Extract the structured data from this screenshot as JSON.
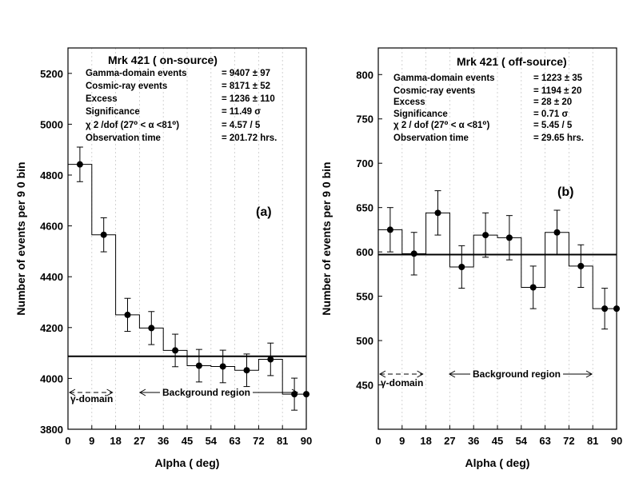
{
  "colors": {
    "ink": "#000000",
    "background": "#ffffff",
    "grid": "#c8c8c8"
  },
  "shared_x_label": "Alpha ( deg)",
  "x_ticks": [
    "0",
    "9",
    "18",
    "27",
    "36",
    "45",
    "54",
    "63",
    "72",
    "81",
    "90"
  ],
  "chart_data": [
    {
      "panel_label": "(a)",
      "type": "line",
      "title": "Mrk  421 ( on-source)",
      "xlabel": "Alpha ( deg)",
      "ylabel": "Number of events per  9 0  bin",
      "ylim": [
        3800,
        5300
      ],
      "y_ticks": [
        "3800",
        "4000",
        "4200",
        "4400",
        "4600",
        "4800",
        "5000",
        "5200"
      ],
      "xlim": [
        0,
        90
      ],
      "grid": true,
      "series": [
        {
          "name": "events per bin",
          "x": [
            4.5,
            13.5,
            22.5,
            31.5,
            40.5,
            49.5,
            58.5,
            67.5,
            76.5,
            85.5,
            90
          ],
          "values": [
            4842,
            4565,
            4250,
            4198,
            4110,
            4050,
            4047,
            4032,
            4075,
            3938,
            3938
          ],
          "errors": [
            68,
            67,
            65,
            65,
            64,
            64,
            64,
            64,
            64,
            63,
            0
          ]
        }
      ],
      "background_level": 4087,
      "annotations": {
        "arrow_left": "γ-domain",
        "arrow_right": "Background   region"
      },
      "stats": [
        {
          "label": "Gamma-domain events",
          "value": "=   9407  ±   97"
        },
        {
          "label": "Cosmic-ray         events",
          "value": "=   8171  ±   52"
        },
        {
          "label": "Excess",
          "value": "=   1236  ±  110"
        },
        {
          "label": "Significance",
          "value": "=         11.49 σ"
        },
        {
          "label": "χ 2 /dof  (27⁰ < α <81⁰)",
          "value": "=     4.57  / 5"
        },
        {
          "label": "Observation time",
          "value": "=     201.72  hrs."
        }
      ]
    },
    {
      "panel_label": "(b)",
      "type": "line",
      "title": "Mrk  421 ( off-source)",
      "xlabel": "Alpha ( deg)",
      "ylabel": "Number of events per  9 0  bin",
      "ylim": [
        400,
        830
      ],
      "y_ticks": [
        "450",
        "500",
        "550",
        "600",
        "650",
        "700",
        "750",
        "800"
      ],
      "xlim": [
        0,
        90
      ],
      "grid": true,
      "series": [
        {
          "name": "events per bin",
          "x": [
            4.5,
            13.5,
            22.5,
            31.5,
            40.5,
            49.5,
            58.5,
            67.5,
            76.5,
            85.5,
            90
          ],
          "values": [
            625,
            598,
            644,
            583,
            619,
            616,
            560,
            622,
            584,
            536,
            536
          ],
          "errors": [
            25,
            24,
            25,
            24,
            25,
            25,
            24,
            25,
            24,
            23,
            0
          ]
        }
      ],
      "background_level": 597,
      "annotations": {
        "arrow_left": "γ-domain",
        "arrow_right": "Background   region"
      },
      "stats": [
        {
          "label": "Gamma-domain events",
          "value": "=    1223  ±  35"
        },
        {
          "label": "Cosmic-ray         events",
          "value": "=    1194  ±   20"
        },
        {
          "label": "Excess",
          "value": "=      28  ±   20"
        },
        {
          "label": "Significance",
          "value": "=       0.71 σ"
        },
        {
          "label": "χ 2 / dof  (27⁰ < α <81⁰)",
          "value": "=      5.45  / 5"
        },
        {
          "label": "Observation  time",
          "value": "=     29.65  hrs."
        }
      ]
    }
  ]
}
